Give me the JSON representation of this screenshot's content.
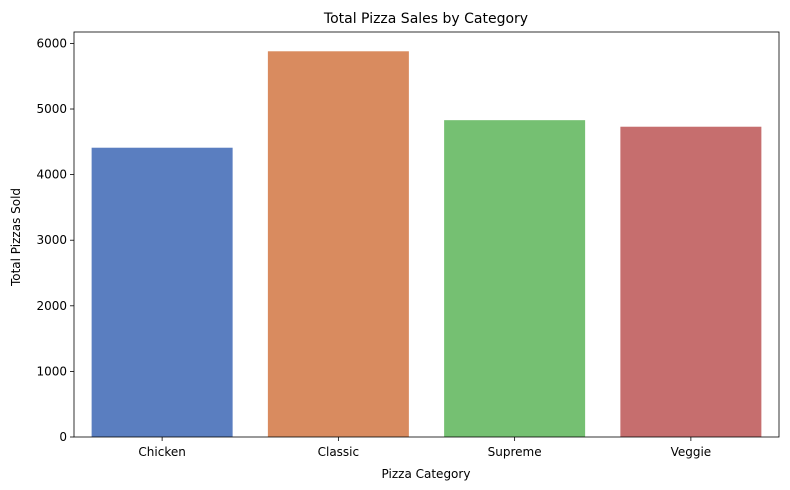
{
  "chart_data": {
    "type": "bar",
    "title": "Total Pizza Sales by Category",
    "xlabel": "Pizza Category",
    "ylabel": "Total Pizzas Sold",
    "categories": [
      "Chicken",
      "Classic",
      "Supreme",
      "Veggie"
    ],
    "values": [
      4410,
      5880,
      4830,
      4730
    ],
    "colors": [
      "#5a7ec0",
      "#d98b5f",
      "#75c072",
      "#c66e6e"
    ],
    "ylim": [
      0,
      6174
    ],
    "yticks": [
      0,
      1000,
      2000,
      3000,
      4000,
      5000,
      6000
    ],
    "grid": false,
    "legend": "none"
  }
}
